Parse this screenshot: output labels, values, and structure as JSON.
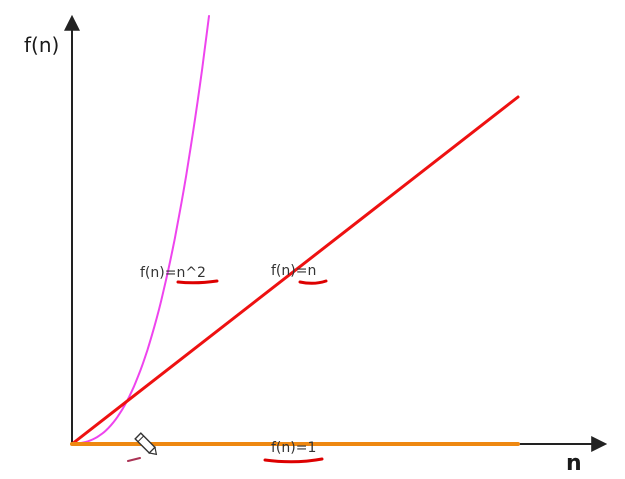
{
  "chart_data": {
    "type": "line",
    "xlabel": "n",
    "ylabel": "f(n)",
    "grid": false,
    "legend": "none",
    "axis_color": "#222222",
    "series": [
      {
        "name": "f(n)=n^2",
        "function": "n^2",
        "color": "#ee44ee",
        "label": "f(n)=n^2",
        "label_underline_color": "#dd0000"
      },
      {
        "name": "f(n)=n",
        "function": "n",
        "color": "#ee1111",
        "label": "f(n)=n",
        "label_underline_color": "#dd0000"
      },
      {
        "name": "f(n)=1",
        "function": "1",
        "color": "#ee8811",
        "label": "f(n)=1",
        "label_underline_color": "#dd0000"
      }
    ]
  },
  "cursor": {
    "icon": "pencil-cursor-icon"
  }
}
